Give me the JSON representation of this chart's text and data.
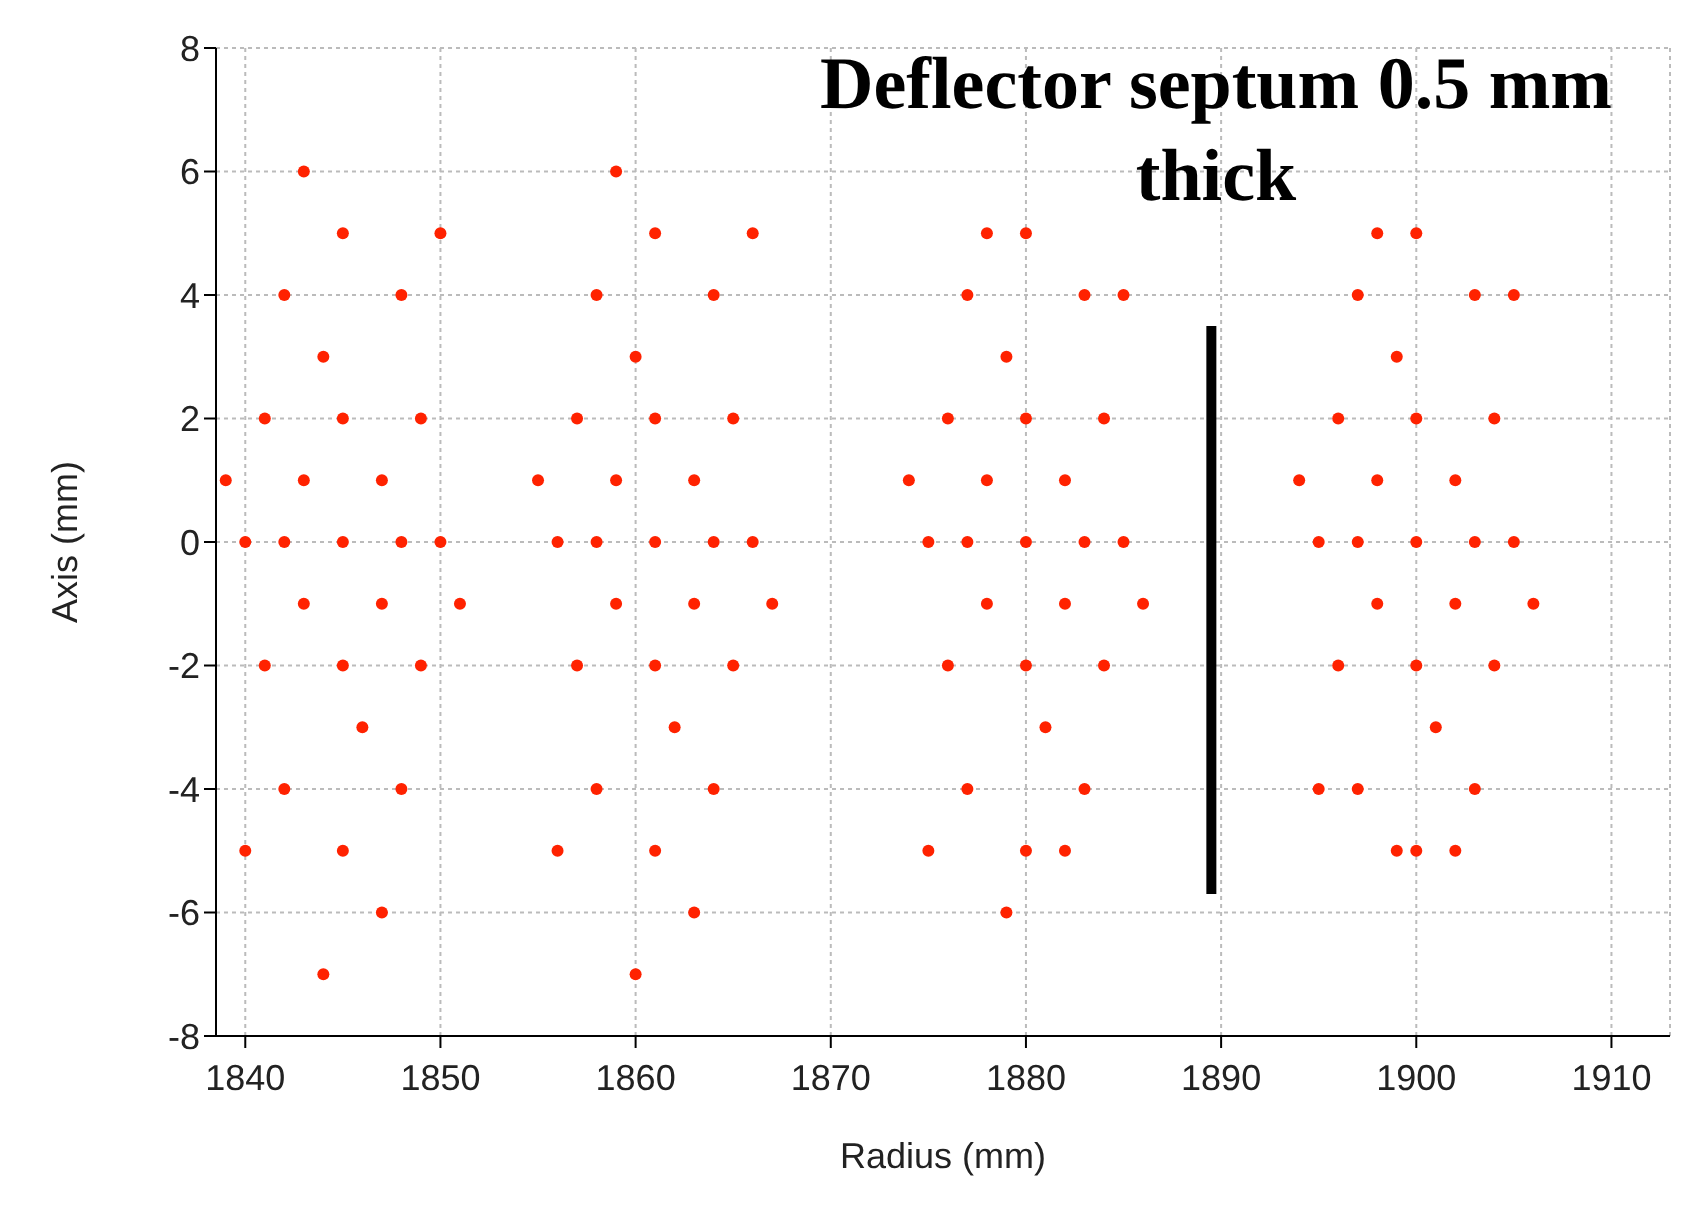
{
  "chart_data": {
    "type": "scatter",
    "xlabel": "Radius (mm)",
    "ylabel": "Axis (mm)",
    "xlim": [
      1838.5,
      1913
    ],
    "xticks": [
      1840,
      1850,
      1860,
      1870,
      1880,
      1890,
      1900,
      1910
    ],
    "ylim": [
      -8,
      8
    ],
    "yticks": [
      -8,
      -6,
      -4,
      -2,
      0,
      2,
      4,
      6,
      8
    ],
    "grid": true,
    "legend": false,
    "marker": "circle",
    "annotations": [
      "Deflector septum 0.5 mm thick"
    ],
    "series": [
      {
        "color": "#ff2200",
        "x": [
          1845,
          1843,
          1847,
          1843,
          1847,
          1845,
          1845,
          1842,
          1848,
          1841,
          1849,
          1841,
          1849,
          1844,
          1846,
          1840,
          1850,
          1842,
          1848,
          1842,
          1848,
          1845,
          1845,
          1839,
          1851,
          1843,
          1847,
          1840,
          1850,
          1844
        ],
        "values": [
          0,
          1,
          1,
          -1,
          -1,
          2,
          -2,
          0,
          0,
          2,
          2,
          -2,
          -2,
          3,
          -3,
          0,
          0,
          4,
          4,
          -4,
          -4,
          5,
          -5,
          1,
          -1,
          6,
          -6,
          -5,
          5,
          -7
        ]
      },
      {
        "color": "#ff2200",
        "x": [
          1861,
          1859,
          1863,
          1859,
          1863,
          1861,
          1861,
          1858,
          1864,
          1857,
          1865,
          1857,
          1865,
          1860,
          1862,
          1856,
          1866,
          1858,
          1864,
          1858,
          1864,
          1861,
          1861,
          1855,
          1867,
          1859,
          1863,
          1856,
          1866,
          1860
        ],
        "values": [
          0,
          1,
          1,
          -1,
          -1,
          2,
          -2,
          0,
          0,
          2,
          2,
          -2,
          -2,
          3,
          -3,
          0,
          0,
          4,
          4,
          -4,
          -4,
          5,
          -5,
          1,
          -1,
          6,
          -6,
          -5,
          5,
          -7
        ]
      },
      {
        "color": "#ff2200",
        "x": [
          1880,
          1878,
          1882,
          1878,
          1882,
          1880,
          1880,
          1877,
          1883,
          1876,
          1884,
          1876,
          1884,
          1879,
          1881,
          1875,
          1885,
          1877,
          1883,
          1877,
          1883,
          1880,
          1880,
          1874,
          1886,
          1878,
          1882,
          1875,
          1885,
          1879
        ],
        "values": [
          0,
          1,
          1,
          -1,
          -1,
          2,
          -2,
          0,
          0,
          2,
          2,
          -2,
          -2,
          3,
          -3,
          0,
          0,
          4,
          4,
          -4,
          -4,
          5,
          -5,
          1,
          -1,
          5,
          -5,
          -5,
          4,
          -6
        ]
      },
      {
        "color": "#ff2200",
        "x": [
          1900,
          1898,
          1902,
          1898,
          1902,
          1900,
          1900,
          1897,
          1903,
          1896,
          1904,
          1896,
          1904,
          1899,
          1901,
          1895,
          1905,
          1897,
          1903,
          1897,
          1903,
          1900,
          1900,
          1894,
          1906,
          1898,
          1902,
          1895,
          1905,
          1899
        ],
        "values": [
          0,
          1,
          1,
          -1,
          -1,
          2,
          -2,
          0,
          0,
          2,
          2,
          -2,
          -2,
          3,
          -3,
          0,
          0,
          4,
          4,
          -4,
          -4,
          5,
          -5,
          1,
          -1,
          5,
          -5,
          -4,
          4,
          -5
        ]
      },
      {
        "type": "line",
        "marker": "none",
        "color": "#000000",
        "x": [
          1889.5,
          1889.5
        ],
        "values": [
          -5.7,
          3.5
        ]
      }
    ]
  }
}
